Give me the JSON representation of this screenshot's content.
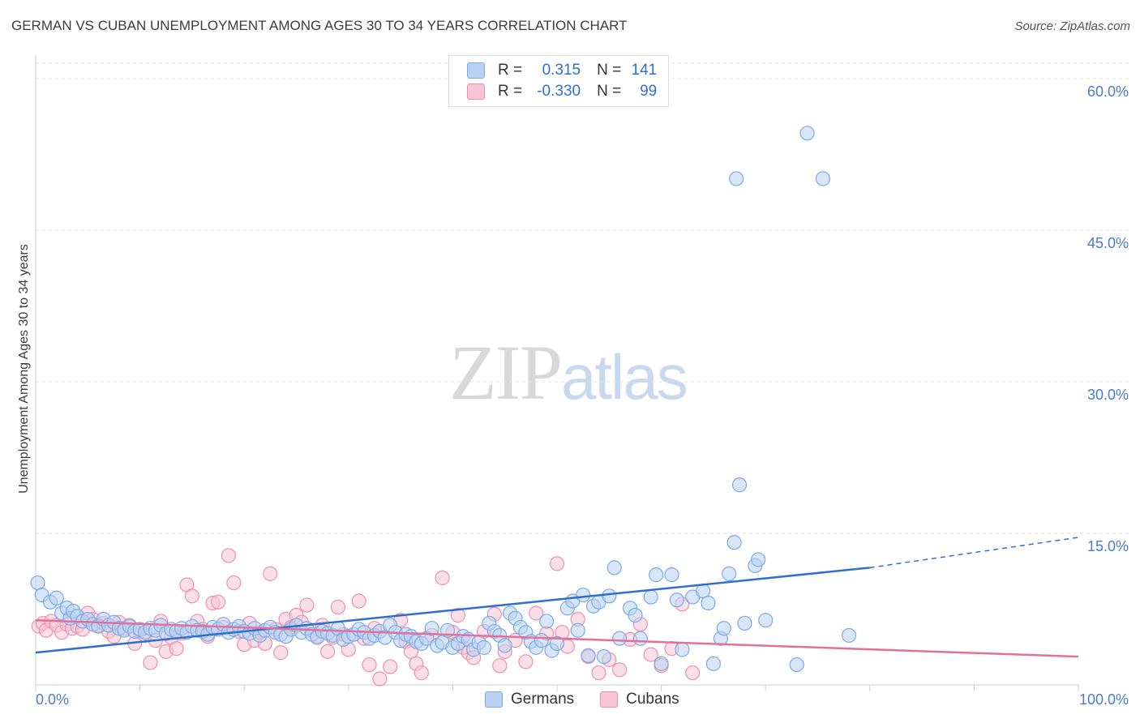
{
  "header": {
    "title": "GERMAN VS CUBAN UNEMPLOYMENT AMONG AGES 30 TO 34 YEARS CORRELATION CHART",
    "source": "Source: ZipAtlas.com"
  },
  "legend": {
    "r_label": "R =",
    "n_label": "N =",
    "series": [
      {
        "r": "0.315",
        "n": "141"
      },
      {
        "r": "-0.330",
        "n": "99"
      }
    ]
  },
  "bottom_legend": [
    "Germans",
    "Cubans"
  ],
  "watermark": {
    "zip": "ZIP",
    "atlas": "atlas"
  },
  "chart_data": {
    "type": "scatter",
    "title": "GERMAN VS CUBAN UNEMPLOYMENT AMONG AGES 30 TO 34 YEARS CORRELATION CHART",
    "ylabel": "Unemployment Among Ages 30 to 34 years",
    "xlim": [
      0,
      100
    ],
    "ylim": [
      0,
      63
    ],
    "x_ticks": [
      "0.0%",
      "100.0%"
    ],
    "y_ticks": [
      {
        "value": 15,
        "label": "15.0%"
      },
      {
        "value": 30,
        "label": "30.0%"
      },
      {
        "value": 45,
        "label": "45.0%"
      },
      {
        "value": 60,
        "label": "60.0%"
      }
    ],
    "grid": true,
    "legend_position": "top-center",
    "series": [
      {
        "name": "Germans",
        "color": "#7aaae8",
        "fill": "#b9d2f3",
        "line_color": "#2e6fd0",
        "trend": {
          "x0": 0,
          "y0": 3.2,
          "x1": 80,
          "y1": 11.6,
          "dash_to_x": 100,
          "dash_to_y": 14.6
        },
        "points": [
          [
            0.2,
            10.1
          ],
          [
            0.6,
            8.9
          ],
          [
            1.4,
            8.2
          ],
          [
            2,
            8.6
          ],
          [
            2.5,
            7.1
          ],
          [
            3,
            7.6
          ],
          [
            3.3,
            6.6
          ],
          [
            3.6,
            7.3
          ],
          [
            4,
            6.8
          ],
          [
            4.5,
            6.3
          ],
          [
            5,
            6.5
          ],
          [
            5.5,
            6.0
          ],
          [
            6,
            5.8
          ],
          [
            6.5,
            6.5
          ],
          [
            7,
            5.9
          ],
          [
            7.5,
            6.2
          ],
          [
            8,
            5.6
          ],
          [
            8.5,
            5.4
          ],
          [
            9,
            5.8
          ],
          [
            9.5,
            5.3
          ],
          [
            10,
            5.5
          ],
          [
            10.5,
            5.2
          ],
          [
            11,
            5.6
          ],
          [
            11.5,
            5.4
          ],
          [
            12,
            5.9
          ],
          [
            12.5,
            5.1
          ],
          [
            13,
            5.5
          ],
          [
            13.5,
            5.3
          ],
          [
            14,
            5.6
          ],
          [
            14.5,
            5.2
          ],
          [
            15,
            5.8
          ],
          [
            15.5,
            5.4
          ],
          [
            16,
            5.3
          ],
          [
            16.5,
            5.0
          ],
          [
            17,
            5.7
          ],
          [
            17.5,
            5.5
          ],
          [
            18,
            6.0
          ],
          [
            18.5,
            5.2
          ],
          [
            19,
            5.5
          ],
          [
            19.5,
            5.8
          ],
          [
            20,
            5.3
          ],
          [
            20.5,
            5.1
          ],
          [
            21,
            5.6
          ],
          [
            21.5,
            4.9
          ],
          [
            22,
            5.4
          ],
          [
            22.5,
            5.7
          ],
          [
            23,
            5.2
          ],
          [
            23.5,
            5.0
          ],
          [
            24,
            4.8
          ],
          [
            24.5,
            5.5
          ],
          [
            25,
            5.9
          ],
          [
            25.5,
            5.2
          ],
          [
            26,
            5.6
          ],
          [
            26.5,
            5.0
          ],
          [
            27,
            4.7
          ],
          [
            27.5,
            5.3
          ],
          [
            28,
            5.1
          ],
          [
            28.5,
            4.9
          ],
          [
            29,
            5.6
          ],
          [
            29.5,
            4.5
          ],
          [
            30,
            4.8
          ],
          [
            30.5,
            5.0
          ],
          [
            31,
            5.5
          ],
          [
            31.5,
            5.2
          ],
          [
            32,
            4.6
          ],
          [
            32.5,
            4.9
          ],
          [
            33,
            5.3
          ],
          [
            33.5,
            4.7
          ],
          [
            34,
            5.9
          ],
          [
            34.5,
            5.2
          ],
          [
            35,
            4.4
          ],
          [
            35.5,
            5.0
          ],
          [
            36,
            4.8
          ],
          [
            36.5,
            4.3
          ],
          [
            37,
            4.1
          ],
          [
            37.5,
            4.6
          ],
          [
            38,
            5.6
          ],
          [
            38.5,
            3.9
          ],
          [
            39,
            4.2
          ],
          [
            39.5,
            5.4
          ],
          [
            40,
            3.7
          ],
          [
            40.5,
            4.1
          ],
          [
            41,
            4.8
          ],
          [
            41.5,
            4.5
          ],
          [
            42,
            3.5
          ],
          [
            42.5,
            4.2
          ],
          [
            43,
            3.7
          ],
          [
            43.5,
            6.1
          ],
          [
            44,
            5.3
          ],
          [
            44.5,
            4.9
          ],
          [
            45,
            3.9
          ],
          [
            45.5,
            7.1
          ],
          [
            46,
            6.6
          ],
          [
            46.5,
            5.7
          ],
          [
            47,
            5.2
          ],
          [
            47.5,
            4.3
          ],
          [
            48,
            3.7
          ],
          [
            48.5,
            4.4
          ],
          [
            49,
            6.3
          ],
          [
            49.5,
            3.4
          ],
          [
            50,
            4.1
          ],
          [
            51,
            7.6
          ],
          [
            51.5,
            8.3
          ],
          [
            52,
            5.4
          ],
          [
            52.5,
            8.9
          ],
          [
            53,
            2.9
          ],
          [
            53.5,
            7.8
          ],
          [
            54,
            8.2
          ],
          [
            54.5,
            2.8
          ],
          [
            55,
            8.8
          ],
          [
            55.5,
            11.6
          ],
          [
            56,
            4.6
          ],
          [
            57,
            7.6
          ],
          [
            57.5,
            6.9
          ],
          [
            58,
            4.6
          ],
          [
            59,
            8.7
          ],
          [
            59.5,
            10.9
          ],
          [
            60,
            2.1
          ],
          [
            61,
            10.9
          ],
          [
            61.5,
            8.4
          ],
          [
            62,
            3.5
          ],
          [
            63,
            8.7
          ],
          [
            64,
            9.3
          ],
          [
            64.5,
            8.1
          ],
          [
            65,
            2.1
          ],
          [
            65.7,
            4.6
          ],
          [
            66,
            5.6
          ],
          [
            66.5,
            11.0
          ],
          [
            67,
            14.1
          ],
          [
            67.5,
            19.8
          ],
          [
            68,
            6.1
          ],
          [
            69,
            11.8
          ],
          [
            69.3,
            12.4
          ],
          [
            70,
            6.4
          ],
          [
            73,
            2.0
          ],
          [
            67.2,
            50.1
          ],
          [
            74,
            54.6
          ],
          [
            75.5,
            50.1
          ],
          [
            78,
            4.9
          ]
        ]
      },
      {
        "name": "Cubans",
        "color": "#ee8fb0",
        "fill": "#f8c4d6",
        "line_color": "#e4709a",
        "trend": {
          "x0": 0,
          "y0": 6.4,
          "x1": 100,
          "y1": 2.8
        },
        "points": [
          [
            0.3,
            5.8
          ],
          [
            0.7,
            6.1
          ],
          [
            1,
            5.4
          ],
          [
            1.5,
            6.3
          ],
          [
            2,
            5.9
          ],
          [
            2.5,
            5.2
          ],
          [
            3,
            6.0
          ],
          [
            3.5,
            5.6
          ],
          [
            4,
            5.8
          ],
          [
            4.5,
            5.5
          ],
          [
            5,
            7.1
          ],
          [
            5.5,
            6.5
          ],
          [
            6,
            5.9
          ],
          [
            6.5,
            6.1
          ],
          [
            7,
            5.3
          ],
          [
            7.5,
            4.8
          ],
          [
            8,
            6.2
          ],
          [
            8.5,
            5.6
          ],
          [
            9,
            5.9
          ],
          [
            9.5,
            4.1
          ],
          [
            10,
            5.3
          ],
          [
            10.5,
            4.9
          ],
          [
            11,
            2.2
          ],
          [
            11.5,
            4.4
          ],
          [
            12,
            6.3
          ],
          [
            12.5,
            3.3
          ],
          [
            13,
            4.7
          ],
          [
            13.5,
            3.6
          ],
          [
            14,
            5.1
          ],
          [
            14.5,
            9.9
          ],
          [
            15,
            8.8
          ],
          [
            15.5,
            6.3
          ],
          [
            16,
            5.5
          ],
          [
            16.5,
            4.8
          ],
          [
            17,
            8.1
          ],
          [
            17.5,
            8.2
          ],
          [
            18,
            5.7
          ],
          [
            18.5,
            12.8
          ],
          [
            19,
            10.1
          ],
          [
            19.5,
            5.3
          ],
          [
            20,
            4.0
          ],
          [
            20.5,
            6.1
          ],
          [
            21,
            4.4
          ],
          [
            21.5,
            5.2
          ],
          [
            22,
            4.1
          ],
          [
            22.5,
            11.0
          ],
          [
            23,
            5.5
          ],
          [
            23.5,
            3.2
          ],
          [
            24,
            6.5
          ],
          [
            24.5,
            5.7
          ],
          [
            25,
            6.9
          ],
          [
            25.5,
            6.2
          ],
          [
            26,
            7.9
          ],
          [
            26.5,
            5.4
          ],
          [
            27,
            4.8
          ],
          [
            27.5,
            5.9
          ],
          [
            28,
            3.3
          ],
          [
            28.5,
            4.7
          ],
          [
            29,
            7.7
          ],
          [
            29.5,
            5.0
          ],
          [
            30,
            3.5
          ],
          [
            31,
            8.3
          ],
          [
            31.5,
            4.6
          ],
          [
            32,
            2.0
          ],
          [
            32.5,
            5.6
          ],
          [
            33,
            0.6
          ],
          [
            34,
            1.8
          ],
          [
            35,
            6.4
          ],
          [
            35.5,
            4.3
          ],
          [
            36,
            3.3
          ],
          [
            36.5,
            2.1
          ],
          [
            37,
            1.2
          ],
          [
            38,
            4.9
          ],
          [
            39,
            10.6
          ],
          [
            40,
            5.2
          ],
          [
            40.5,
            6.9
          ],
          [
            41,
            3.7
          ],
          [
            41.5,
            3.2
          ],
          [
            42,
            2.7
          ],
          [
            43,
            5.3
          ],
          [
            44,
            7.0
          ],
          [
            44.5,
            1.9
          ],
          [
            45,
            3.3
          ],
          [
            46,
            4.4
          ],
          [
            47,
            2.3
          ],
          [
            48,
            7.1
          ],
          [
            49,
            5.1
          ],
          [
            50,
            12.0
          ],
          [
            50.5,
            5.2
          ],
          [
            51,
            3.8
          ],
          [
            52,
            6.5
          ],
          [
            53,
            2.8
          ],
          [
            54,
            1.2
          ],
          [
            55,
            2.5
          ],
          [
            56,
            1.5
          ],
          [
            57,
            4.5
          ],
          [
            58,
            6.0
          ],
          [
            59,
            3.0
          ],
          [
            60,
            1.9
          ],
          [
            61,
            3.6
          ],
          [
            62,
            8.0
          ],
          [
            63,
            1.2
          ]
        ]
      }
    ]
  }
}
